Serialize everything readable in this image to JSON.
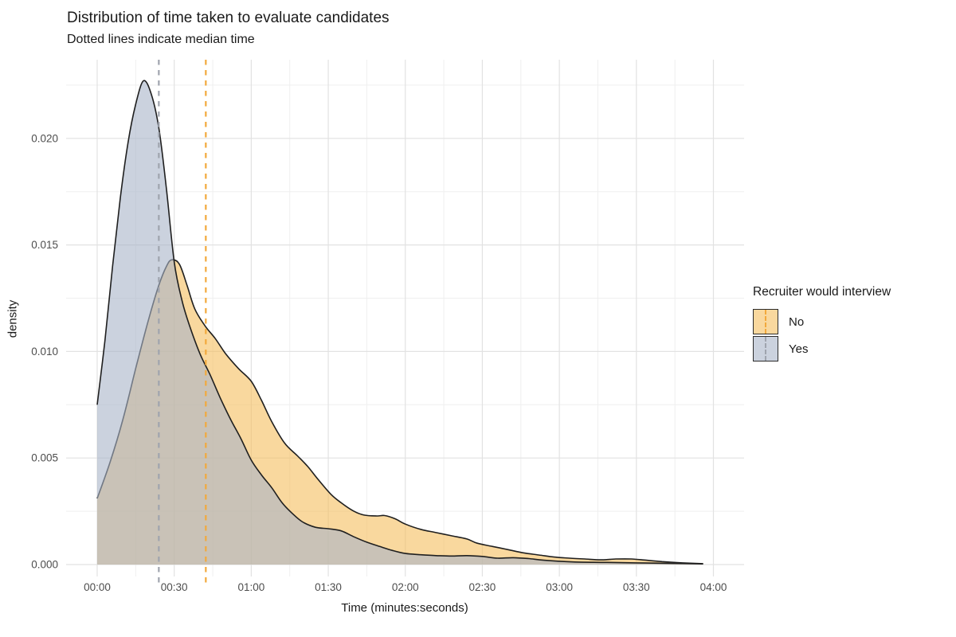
{
  "header": {
    "title": "Distribution of time taken to evaluate candidates",
    "subtitle": "Dotted lines indicate median time"
  },
  "chart_data": {
    "type": "area",
    "subtype": "density",
    "title": "Distribution of time taken to evaluate candidates",
    "subtitle": "Dotted lines indicate median time",
    "xlabel": "Time (minutes:seconds)",
    "ylabel": "density",
    "x_ticks": [
      {
        "label": "00:00",
        "seconds": 0
      },
      {
        "label": "00:30",
        "seconds": 30
      },
      {
        "label": "01:00",
        "seconds": 60
      },
      {
        "label": "01:30",
        "seconds": 90
      },
      {
        "label": "02:00",
        "seconds": 120
      },
      {
        "label": "02:30",
        "seconds": 150
      },
      {
        "label": "03:00",
        "seconds": 180
      },
      {
        "label": "03:30",
        "seconds": 210
      },
      {
        "label": "04:00",
        "seconds": 240
      }
    ],
    "y_ticks": [
      {
        "label": "0.000",
        "value": 0.0
      },
      {
        "label": "0.005",
        "value": 0.005
      },
      {
        "label": "0.010",
        "value": 0.01
      },
      {
        "label": "0.015",
        "value": 0.015
      },
      {
        "label": "0.020",
        "value": 0.02
      }
    ],
    "x_range_seconds": [
      -12,
      252
    ],
    "ylim": [
      -0.00056,
      0.02425
    ],
    "grid": {
      "show": true,
      "major_color": "#E2E2E2",
      "minor_color": "#EFEFEF",
      "x_minor_step_seconds": 15,
      "y_minor_step": 0.0025
    },
    "legend": {
      "title": "Recruiter would interview",
      "position": "right",
      "items": [
        {
          "label": "No",
          "key_fill": "rgba(245,190,94,0.6)",
          "key_line_color": "#F2A93C"
        },
        {
          "label": "Yes",
          "key_fill": "rgba(168,180,200,0.6)",
          "key_line_color": "#9FA4AE"
        }
      ]
    },
    "series": [
      {
        "name": "No",
        "fill": "rgba(245,190,94,0.6)",
        "line_color": "#1F1F1F",
        "median_seconds": 42.3,
        "median_line_color": "#F2A93C",
        "points": [
          [
            0,
            0.0031
          ],
          [
            5,
            0.0048
          ],
          [
            10,
            0.0068
          ],
          [
            15,
            0.0092
          ],
          [
            20,
            0.0115
          ],
          [
            24,
            0.0131
          ],
          [
            27,
            0.014
          ],
          [
            29,
            0.0143
          ],
          [
            32,
            0.0141
          ],
          [
            35,
            0.0131
          ],
          [
            38,
            0.012
          ],
          [
            42,
            0.0112
          ],
          [
            46,
            0.0106
          ],
          [
            50,
            0.0099
          ],
          [
            55,
            0.0092
          ],
          [
            60,
            0.0086
          ],
          [
            64,
            0.0077
          ],
          [
            68,
            0.0067
          ],
          [
            73,
            0.0057
          ],
          [
            78,
            0.0051
          ],
          [
            82,
            0.0046
          ],
          [
            86,
            0.004
          ],
          [
            91,
            0.0033
          ],
          [
            95,
            0.0029
          ],
          [
            100,
            0.0025
          ],
          [
            104,
            0.00232
          ],
          [
            109,
            0.00228
          ],
          [
            112,
            0.0023
          ],
          [
            116,
            0.00215
          ],
          [
            120,
            0.0019
          ],
          [
            126,
            0.00165
          ],
          [
            132,
            0.0015
          ],
          [
            138,
            0.00135
          ],
          [
            144,
            0.0012
          ],
          [
            148,
            0.001
          ],
          [
            154,
            0.00085
          ],
          [
            160,
            0.0007
          ],
          [
            166,
            0.00055
          ],
          [
            172,
            0.00045
          ],
          [
            178,
            0.00035
          ],
          [
            184,
            0.0003
          ],
          [
            190,
            0.00026
          ],
          [
            196,
            0.00022
          ],
          [
            202,
            0.00026
          ],
          [
            208,
            0.00026
          ],
          [
            214,
            0.0002
          ],
          [
            220,
            0.00014
          ],
          [
            228,
            8e-05
          ],
          [
            236,
            4e-05
          ]
        ]
      },
      {
        "name": "Yes",
        "fill": "rgba(168,180,200,0.6)",
        "line_color": "#1F1F1F",
        "median_seconds": 24,
        "median_line_color": "#9FA4AE",
        "points": [
          [
            0,
            0.0075
          ],
          [
            3,
            0.0105
          ],
          [
            6,
            0.014
          ],
          [
            9,
            0.0172
          ],
          [
            12,
            0.0198
          ],
          [
            15,
            0.0216
          ],
          [
            18,
            0.0227
          ],
          [
            21,
            0.0221
          ],
          [
            24,
            0.0205
          ],
          [
            27,
            0.0176
          ],
          [
            30,
            0.0142
          ],
          [
            33,
            0.0124
          ],
          [
            36,
            0.0112
          ],
          [
            40,
            0.0099
          ],
          [
            44,
            0.0089
          ],
          [
            48,
            0.0078
          ],
          [
            52,
            0.0068
          ],
          [
            56,
            0.0059
          ],
          [
            60,
            0.0049
          ],
          [
            64,
            0.0042
          ],
          [
            68,
            0.0036
          ],
          [
            72,
            0.0029
          ],
          [
            76,
            0.0024
          ],
          [
            80,
            0.002
          ],
          [
            85,
            0.00175
          ],
          [
            90,
            0.00168
          ],
          [
            95,
            0.00158
          ],
          [
            100,
            0.0013
          ],
          [
            105,
            0.00105
          ],
          [
            110,
            0.00085
          ],
          [
            115,
            0.00066
          ],
          [
            120,
            0.00052
          ],
          [
            126,
            0.00046
          ],
          [
            132,
            0.00042
          ],
          [
            138,
            0.0004
          ],
          [
            144,
            0.00042
          ],
          [
            150,
            0.00038
          ],
          [
            156,
            0.0003
          ],
          [
            162,
            0.00032
          ],
          [
            168,
            0.00028
          ],
          [
            174,
            0.0002
          ],
          [
            186,
            0.00012
          ],
          [
            198,
            0.0001
          ],
          [
            210,
            8e-05
          ],
          [
            222,
            6e-05
          ],
          [
            236,
            3e-05
          ]
        ]
      }
    ]
  }
}
